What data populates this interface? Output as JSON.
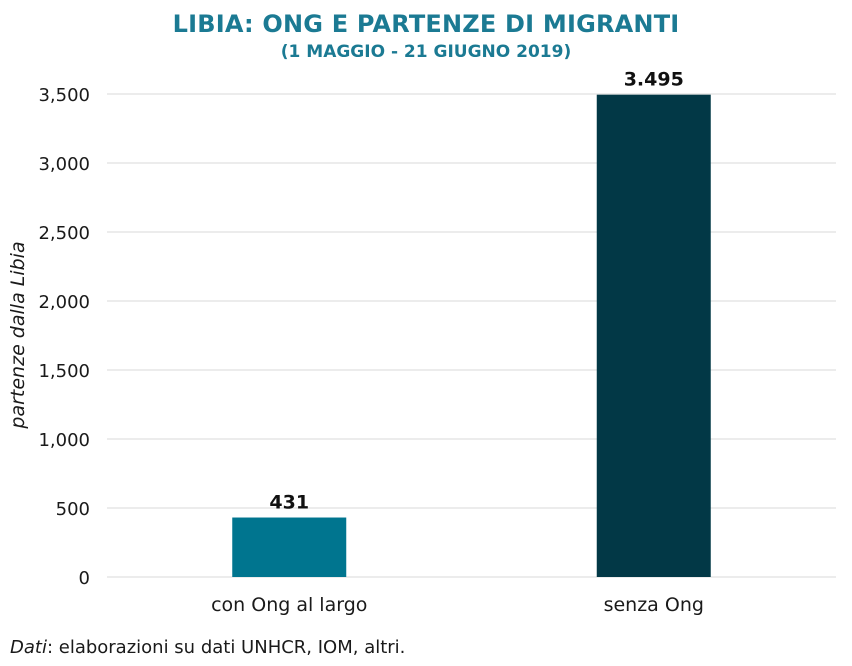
{
  "chart_data": {
    "type": "bar",
    "title": "LIBIA: ONG E PARTENZE DI MIGRANTI",
    "subtitle": "(1 MAGGIO - 21 GIUGNO 2019)",
    "categories": [
      "con Ong al largo",
      "senza Ong"
    ],
    "values": [
      431,
      3495
    ],
    "value_labels": [
      "431",
      "3.495"
    ],
    "colors": [
      "#00758f",
      "#023846"
    ],
    "xlabel": "",
    "ylabel": "partenze dalla Libia",
    "ylim": [
      0,
      3500
    ],
    "yticks": [
      0,
      500,
      1000,
      1500,
      2000,
      2500,
      3000,
      3500
    ],
    "ytick_labels": [
      "0",
      "500",
      "1,000",
      "1,500",
      "2,000",
      "2,500",
      "3,000",
      "3,500"
    ],
    "grid": true,
    "legend": "none"
  },
  "source": {
    "prefix": "Dati",
    "text": ": elaborazioni su dati UNHCR, IOM, altri."
  }
}
